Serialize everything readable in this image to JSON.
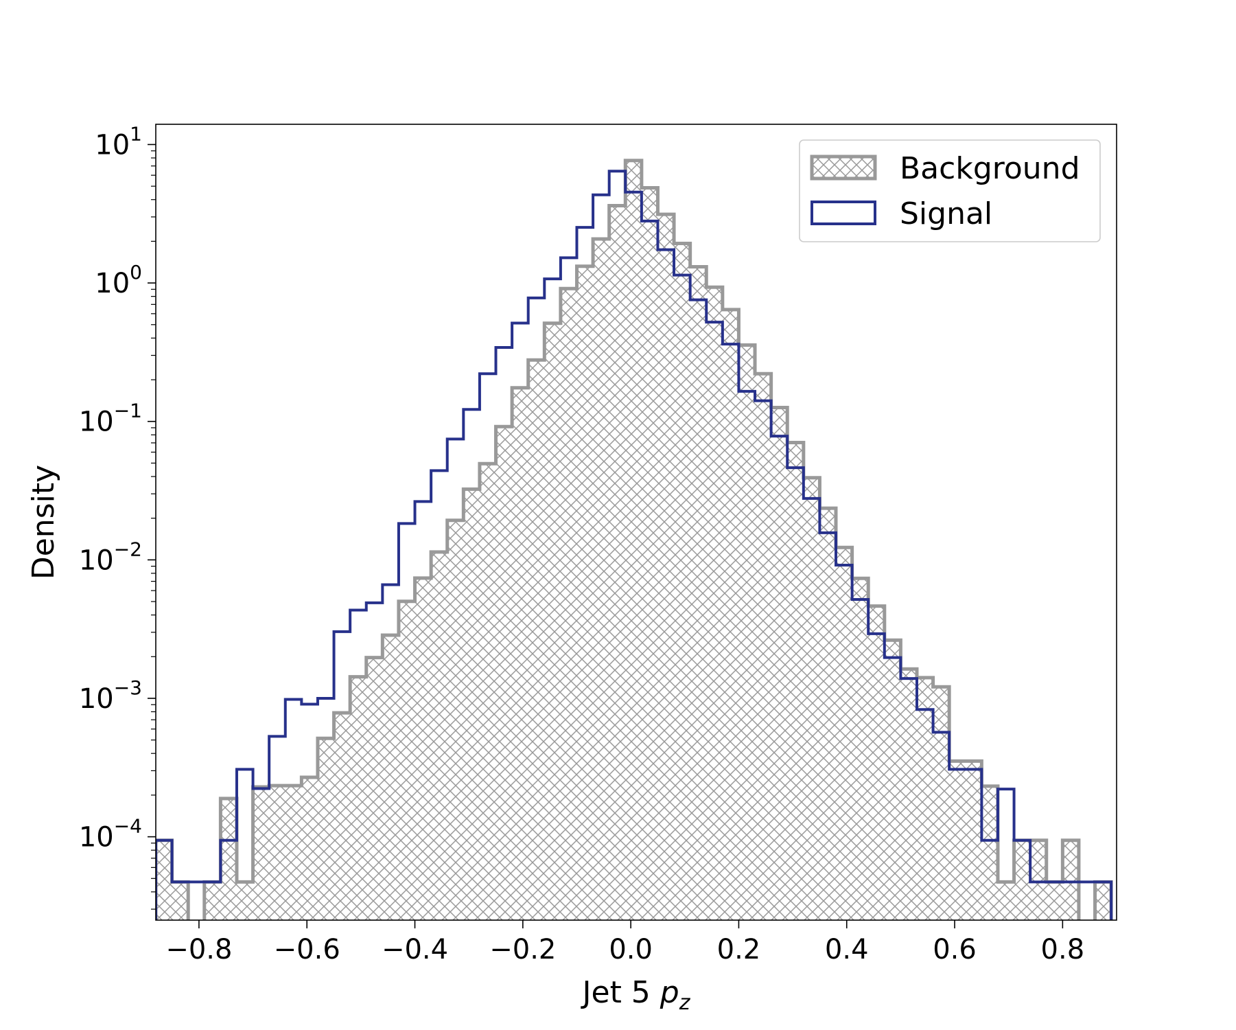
{
  "chart_data": {
    "type": "histogram",
    "title": "",
    "xlabel": "Jet 5",
    "xlabel_math": "p",
    "xlabel_sub": "z",
    "ylabel": "Density",
    "yscale": "log",
    "xlim": [
      -0.88,
      0.9
    ],
    "ylim": [
      2.5e-05,
      14
    ],
    "x_ticks": [
      -0.8,
      -0.6,
      -0.4,
      -0.2,
      0.0,
      0.2,
      0.4,
      0.6,
      0.8
    ],
    "x_tick_labels": [
      "−0.8",
      "−0.6",
      "−0.4",
      "−0.2",
      "0.0",
      "0.2",
      "0.4",
      "0.6",
      "0.8"
    ],
    "y_ticks": [
      10.0,
      1.0,
      0.1,
      0.01,
      0.001,
      0.0001
    ],
    "y_tick_bases": [
      "10",
      "10",
      "10",
      "10",
      "10",
      "10"
    ],
    "y_tick_exponents": [
      "1",
      "0",
      "−1",
      "−2",
      "−3",
      "−4"
    ],
    "legend_position": "top-right",
    "bin_edges": [
      -0.88,
      -0.85,
      -0.82,
      -0.79,
      -0.76,
      -0.73,
      -0.7,
      -0.67,
      -0.64,
      -0.61,
      -0.58,
      -0.55,
      -0.52,
      -0.49,
      -0.46,
      -0.43,
      -0.4,
      -0.37,
      -0.34,
      -0.31,
      -0.28,
      -0.25,
      -0.22,
      -0.19,
      -0.16,
      -0.13,
      -0.1,
      -0.07,
      -0.04,
      -0.01,
      0.02,
      0.05,
      0.08,
      0.11,
      0.14,
      0.17,
      0.2,
      0.23,
      0.26,
      0.29,
      0.32,
      0.35,
      0.38,
      0.41,
      0.44,
      0.47,
      0.5,
      0.53,
      0.56,
      0.59,
      0.62,
      0.65,
      0.68,
      0.71,
      0.74,
      0.77,
      0.8,
      0.83,
      0.86,
      0.89
    ],
    "series": [
      {
        "name": "Background",
        "style": "hatched-filled",
        "color": "#999999",
        "values": [
          9.43e-05,
          4.72e-05,
          1.4e-05,
          4.72e-05,
          0.000189,
          4.72e-05,
          0.000229,
          0.000234,
          0.000234,
          0.000269,
          0.000514,
          0.000786,
          0.00143,
          0.00197,
          0.00286,
          0.00502,
          0.00739,
          0.0114,
          0.0193,
          0.0324,
          0.0495,
          0.0917,
          0.175,
          0.278,
          0.512,
          0.911,
          1.32,
          2.08,
          3.62,
          7.67,
          4.87,
          3.13,
          1.93,
          1.31,
          0.932,
          0.642,
          0.356,
          0.221,
          0.126,
          0.0704,
          0.0392,
          0.0236,
          0.0123,
          0.00735,
          0.00464,
          0.00263,
          0.00163,
          0.00141,
          0.00121,
          0.000352,
          0.000352,
          0.000232,
          4.72e-05,
          9.43e-05,
          9.43e-05,
          4.72e-05,
          9.43e-05,
          1.4e-05,
          4.72e-05
        ],
        "edgecolor": "#999999"
      },
      {
        "name": "Signal",
        "style": "step-outline",
        "color": "#27318b",
        "values": [
          9.43e-05,
          4.72e-05,
          4.72e-05,
          4.72e-05,
          9.43e-05,
          0.000307,
          0.000223,
          0.000531,
          0.000983,
          0.000907,
          0.001,
          0.00303,
          0.00434,
          0.0049,
          0.00662,
          0.0183,
          0.0264,
          0.0441,
          0.0746,
          0.122,
          0.221,
          0.342,
          0.513,
          0.78,
          1.07,
          1.52,
          2.52,
          4.33,
          6.42,
          4.53,
          2.8,
          1.74,
          1.14,
          0.756,
          0.521,
          0.362,
          0.165,
          0.141,
          0.0783,
          0.0463,
          0.0278,
          0.0157,
          0.00916,
          0.00518,
          0.00293,
          0.00197,
          0.00139,
          0.00083,
          0.000569,
          0.000307,
          0.000307,
          9.43e-05,
          0.000221,
          9.43e-05,
          4.72e-05,
          4.72e-05,
          4.72e-05,
          4.72e-05,
          4.72e-05
        ]
      }
    ]
  }
}
